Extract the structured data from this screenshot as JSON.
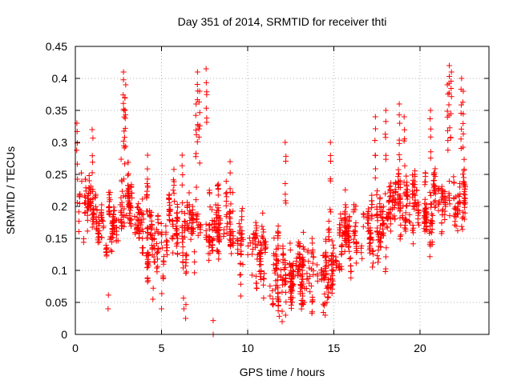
{
  "chart_data": {
    "type": "scatter",
    "title": "Day 351 of 2014, SRMTID for receiver thti",
    "xlabel": "GPS time / hours",
    "ylabel": "SRMTID / TECUs",
    "xlim": [
      0,
      24
    ],
    "ylim": [
      0,
      0.45
    ],
    "x_ticks": [
      0,
      5,
      10,
      15,
      20
    ],
    "y_ticks": [
      0,
      0.05,
      0.1,
      0.15,
      0.2,
      0.25,
      0.3,
      0.35,
      0.4,
      0.45
    ],
    "x_tick_labels": [
      "0",
      "5",
      "10",
      "15",
      "20"
    ],
    "y_tick_labels": [
      "0",
      "0.05",
      "0.1",
      "0.15",
      "0.2",
      "0.25",
      "0.3",
      "0.35",
      "0.4",
      "0.45"
    ],
    "grid": true,
    "marker": "plus",
    "color": "#ff0000",
    "trend": [
      [
        0.0,
        0.21
      ],
      [
        1.0,
        0.19
      ],
      [
        2.0,
        0.16
      ],
      [
        2.8,
        0.22
      ],
      [
        3.5,
        0.2
      ],
      [
        4.5,
        0.14
      ],
      [
        5.2,
        0.12
      ],
      [
        5.6,
        0.2
      ],
      [
        6.3,
        0.14
      ],
      [
        7.0,
        0.17
      ],
      [
        8.0,
        0.16
      ],
      [
        9.0,
        0.18
      ],
      [
        10.0,
        0.14
      ],
      [
        10.8,
        0.12
      ],
      [
        11.5,
        0.09
      ],
      [
        12.5,
        0.1
      ],
      [
        13.5,
        0.1
      ],
      [
        14.5,
        0.1
      ],
      [
        15.5,
        0.15
      ],
      [
        16.5,
        0.16
      ],
      [
        17.5,
        0.16
      ],
      [
        18.5,
        0.2
      ],
      [
        19.5,
        0.21
      ],
      [
        20.5,
        0.2
      ],
      [
        21.5,
        0.2
      ],
      [
        22.5,
        0.2
      ]
    ],
    "spikes": [
      [
        2.8,
        0.41
      ],
      [
        2.9,
        0.39
      ],
      [
        2.85,
        0.37
      ],
      [
        7.1,
        0.41
      ],
      [
        7.6,
        0.415
      ],
      [
        7.2,
        0.38
      ],
      [
        7.0,
        0.36
      ],
      [
        21.7,
        0.42
      ],
      [
        21.8,
        0.41
      ],
      [
        21.6,
        0.39
      ],
      [
        22.4,
        0.4
      ],
      [
        22.5,
        0.38
      ],
      [
        20.6,
        0.35
      ],
      [
        18.0,
        0.35
      ],
      [
        18.8,
        0.36
      ],
      [
        19.1,
        0.34
      ],
      [
        17.4,
        0.34
      ],
      [
        0.1,
        0.33
      ],
      [
        1.0,
        0.32
      ],
      [
        12.2,
        0.3
      ],
      [
        14.8,
        0.3
      ],
      [
        9.0,
        0.27
      ],
      [
        6.2,
        0.28
      ],
      [
        4.2,
        0.28
      ]
    ],
    "lows": [
      [
        6.4,
        0.025
      ],
      [
        6.3,
        0.04
      ],
      [
        12.0,
        0.02
      ],
      [
        12.2,
        0.03
      ],
      [
        14.5,
        0.03
      ],
      [
        14.6,
        0.05
      ],
      [
        1.9,
        0.04
      ],
      [
        5.0,
        0.04
      ],
      [
        8.0,
        0.0
      ],
      [
        13.3,
        0.05
      ],
      [
        11.3,
        0.06
      ],
      [
        4.5,
        0.055
      ],
      [
        9.6,
        0.06
      ]
    ]
  }
}
